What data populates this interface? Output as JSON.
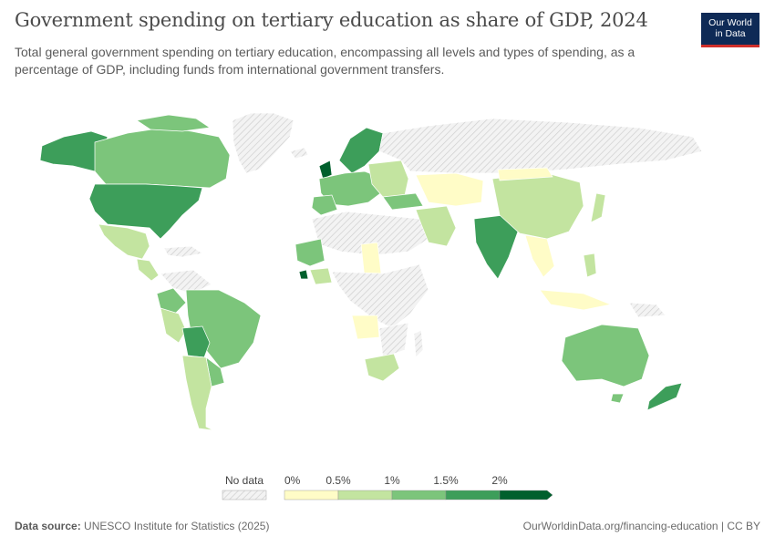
{
  "header": {
    "title": "Government spending on tertiary education as share of GDP, 2024",
    "subtitle": "Total general government spending on tertiary education, encompassing all levels and types of spending, as a percentage of GDP, including funds from international government transfers."
  },
  "logo": {
    "line1": "Our World",
    "line2": "in Data"
  },
  "legend": {
    "no_data_label": "No data",
    "tick_labels": [
      "0%",
      "0.5%",
      "1%",
      "1.5%",
      "2%"
    ],
    "bin_colors": [
      "#fffcc7",
      "#c3e4a0",
      "#7cc57b",
      "#3d9e5a",
      "#00602d"
    ]
  },
  "colors": {
    "no_data_fill": "#ececec",
    "ocean": "#ffffff",
    "border": "#ffffff"
  },
  "footer": {
    "source_label": "Data source:",
    "source": "UNESCO Institute for Statistics (2025)",
    "url": "OurWorldinData.org/financing-education | CC BY"
  }
}
